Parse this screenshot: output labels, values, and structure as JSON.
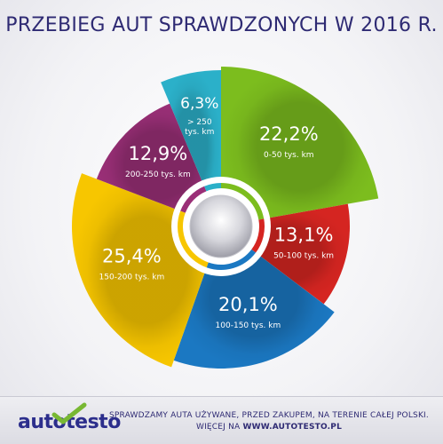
{
  "title": "PRZEBIEG AUT SPRAWDZONYCH W 2016 R.",
  "chart_data": {
    "type": "pie",
    "title": "PRZEBIEG AUT SPRAWDZONYCH W 2016 R.",
    "slices": [
      {
        "value": 22.2,
        "value_label": "22,2%",
        "label": "0-50 tys. km",
        "label_lines": [
          "0-50 tys. km"
        ],
        "color": "#7cbd1e"
      },
      {
        "value": 13.1,
        "value_label": "13,1%",
        "label": "50-100 tys. km",
        "label_lines": [
          "50-100 tys. km"
        ],
        "color": "#d52521"
      },
      {
        "value": 20.1,
        "value_label": "20,1%",
        "label": "100-150 tys. km",
        "label_lines": [
          "100-150 tys. km"
        ],
        "color": "#1b78c2"
      },
      {
        "value": 25.4,
        "value_label": "25,4%",
        "label": "150-200 tys. km",
        "label_lines": [
          "150-200 tys. km"
        ],
        "color": "#f7c600"
      },
      {
        "value": 12.9,
        "value_label": "12,9%",
        "label": "200-250 tys. km",
        "label_lines": [
          "200-250 tys. km"
        ],
        "color": "#9a2f77"
      },
      {
        "value": 6.3,
        "value_label": "6,3%",
        "label": "> 250 tys. km",
        "label_lines": [
          "> 250",
          "tys. km"
        ],
        "color": "#2bb0c9"
      }
    ]
  },
  "footer": {
    "logo_text": "autotesto",
    "tagline_1": "SPRAWDZAMY AUTA UŻYWANE, PRZED ZAKUPEM, NA TERENIE CAŁEJ POLSKI.",
    "tagline_2_prefix": "WIĘCEJ NA",
    "website": "WWW.AUTOTESTO.PL"
  }
}
